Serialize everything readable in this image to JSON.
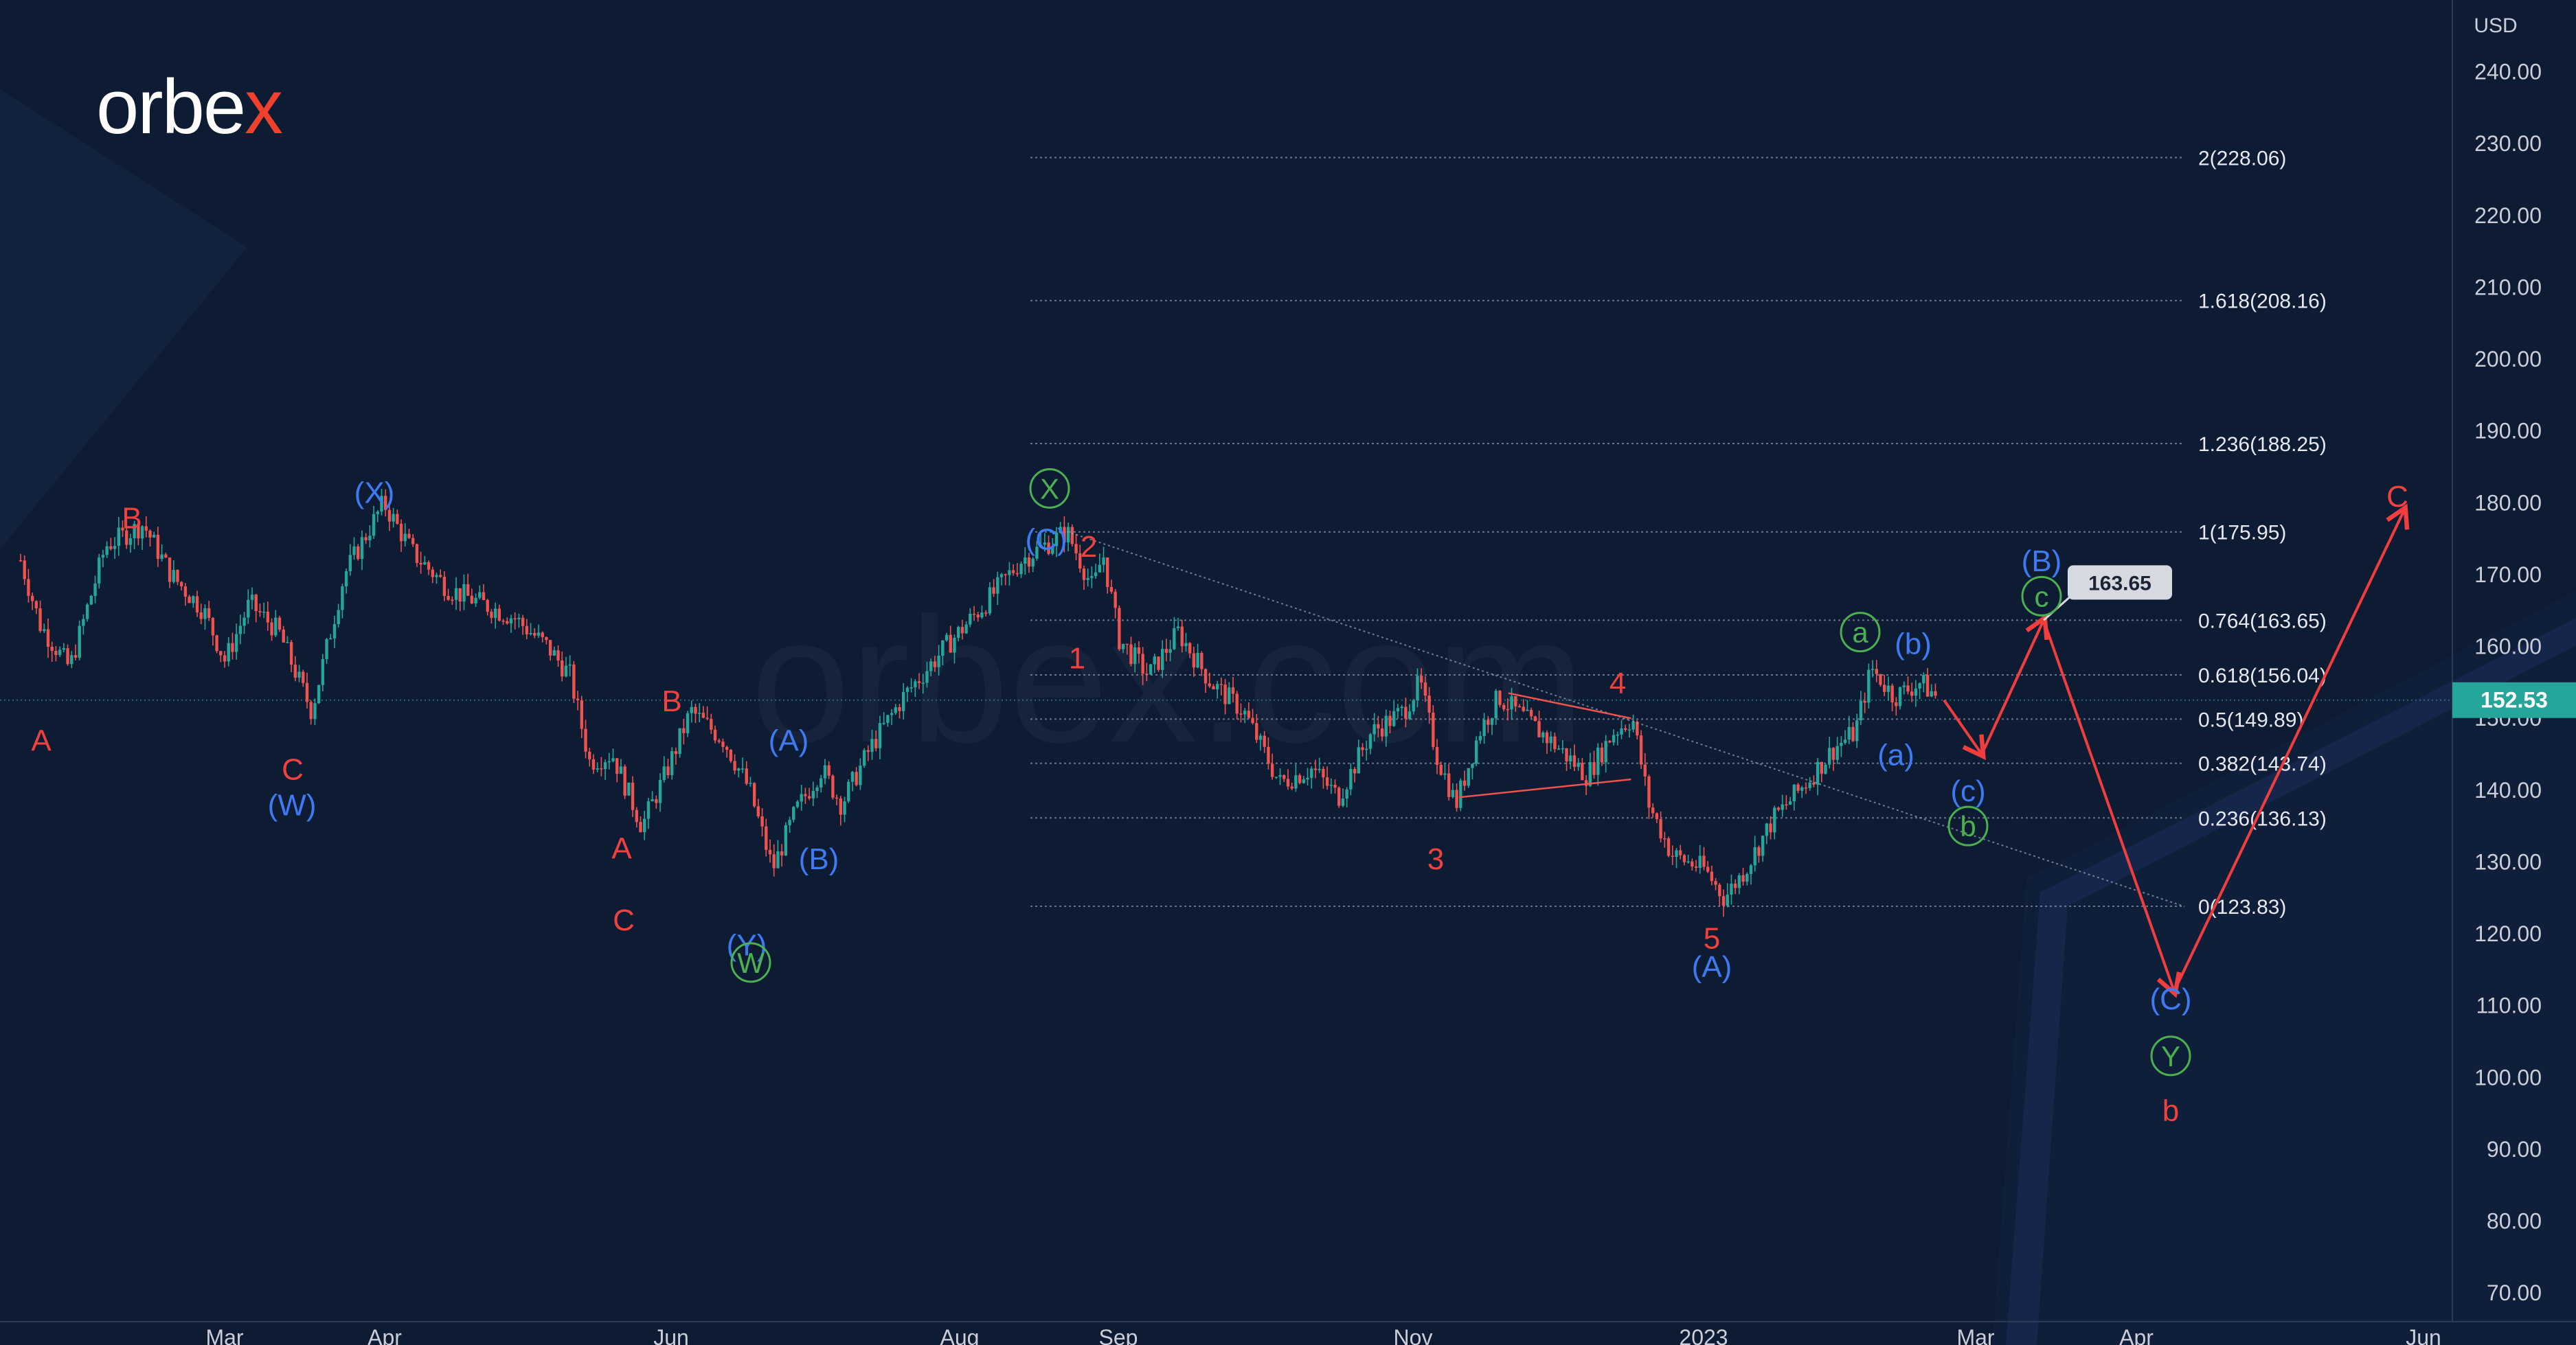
{
  "brand": {
    "prefix": "orbe",
    "accent": "x",
    "accent_color": "#f0412f",
    "watermark": "orbex.com"
  },
  "chart_data": {
    "type": "candlestick",
    "currency": "USD",
    "ylim": [
      66,
      250
    ],
    "y_ticks": [
      70,
      80,
      90,
      100,
      110,
      120,
      130,
      140,
      150,
      160,
      170,
      180,
      190,
      200,
      210,
      220,
      230,
      240
    ],
    "x_ticks": [
      "Mar",
      "Apr",
      "Jun",
      "Aug",
      "Sep",
      "Nov",
      "2023",
      "Mar",
      "Apr",
      "Jun"
    ],
    "last_price": 152.53,
    "last_price_label": "152.53",
    "fib_levels": [
      {
        "ratio": "2",
        "price": 228.06,
        "label": "2(228.06)"
      },
      {
        "ratio": "1.618",
        "price": 208.16,
        "label": "1.618(208.16)"
      },
      {
        "ratio": "1.236",
        "price": 188.25,
        "label": "1.236(188.25)"
      },
      {
        "ratio": "1",
        "price": 175.95,
        "label": "1(175.95)"
      },
      {
        "ratio": "0.764",
        "price": 163.65,
        "label": "0.764(163.65)"
      },
      {
        "ratio": "0.618",
        "price": 156.04,
        "label": "0.618(156.04)"
      },
      {
        "ratio": "0.5",
        "price": 149.89,
        "label": "0.5(149.89)"
      },
      {
        "ratio": "0.382",
        "price": 143.74,
        "label": "0.382(143.74)"
      },
      {
        "ratio": "0.236",
        "price": 136.13,
        "label": "0.236(136.13)"
      },
      {
        "ratio": "0",
        "price": 123.83,
        "label": "0(123.83)"
      }
    ],
    "target_callout": {
      "price": 163.65,
      "label": "163.65"
    },
    "price_path": [
      [
        0,
        172
      ],
      [
        12,
        163
      ],
      [
        30,
        157
      ],
      [
        52,
        174
      ],
      [
        75,
        177
      ],
      [
        92,
        170
      ],
      [
        112,
        165
      ],
      [
        125,
        158
      ],
      [
        140,
        166
      ],
      [
        158,
        162
      ],
      [
        178,
        151
      ],
      [
        198,
        170
      ],
      [
        222,
        180
      ],
      [
        240,
        173
      ],
      [
        262,
        168
      ],
      [
        282,
        166
      ],
      [
        302,
        164
      ],
      [
        322,
        160
      ],
      [
        336,
        156
      ],
      [
        348,
        144
      ],
      [
        362,
        145
      ],
      [
        380,
        135
      ],
      [
        394,
        142
      ],
      [
        410,
        151
      ],
      [
        430,
        147
      ],
      [
        446,
        140
      ],
      [
        460,
        129
      ],
      [
        474,
        137
      ],
      [
        490,
        143
      ],
      [
        502,
        138
      ],
      [
        520,
        146
      ],
      [
        540,
        153
      ],
      [
        566,
        160
      ],
      [
        590,
        166
      ],
      [
        612,
        172
      ],
      [
        640,
        176
      ],
      [
        656,
        168
      ],
      [
        662,
        173
      ],
      [
        672,
        161
      ],
      [
        690,
        156
      ],
      [
        708,
        162
      ],
      [
        728,
        155
      ],
      [
        748,
        151
      ],
      [
        770,
        141
      ],
      [
        790,
        143
      ],
      [
        806,
        139
      ],
      [
        826,
        148
      ],
      [
        846,
        151
      ],
      [
        856,
        155
      ],
      [
        866,
        145
      ],
      [
        878,
        138
      ],
      [
        892,
        148
      ],
      [
        904,
        153
      ],
      [
        920,
        150
      ],
      [
        940,
        146
      ],
      [
        958,
        142
      ],
      [
        974,
        148
      ],
      [
        986,
        150
      ],
      [
        996,
        138
      ],
      [
        1010,
        131
      ],
      [
        1030,
        129
      ],
      [
        1042,
        125
      ],
      [
        1055,
        129
      ],
      [
        1072,
        136
      ],
      [
        1092,
        141
      ],
      [
        1110,
        146
      ],
      [
        1122,
        148
      ],
      [
        1132,
        157
      ],
      [
        1146,
        153
      ],
      [
        1162,
        155
      ],
      [
        1172,
        153
      ]
    ],
    "projection": [
      {
        "price": 152.53
      },
      {
        "price": 145
      },
      {
        "price": 163.65
      },
      {
        "price": 112
      },
      {
        "price": 179
      }
    ],
    "annotations": [
      {
        "text": "A",
        "color": "red",
        "price": 147
      },
      {
        "text": "B",
        "color": "red",
        "price": 178
      },
      {
        "text": "C",
        "color": "red",
        "price": 143
      },
      {
        "text": "(W)",
        "color": "blue",
        "price": 138
      },
      {
        "text": "(X)",
        "color": "blue",
        "price": 181.5
      },
      {
        "text": "A",
        "color": "red",
        "price": 132
      },
      {
        "text": "B",
        "color": "red",
        "price": 152.5
      },
      {
        "text": "C",
        "color": "red",
        "price": 122
      },
      {
        "text": "(Y)",
        "color": "blue",
        "price": 118.5
      },
      {
        "text": "W",
        "color": "green",
        "circle": true,
        "price": 116
      },
      {
        "text": "(A)",
        "color": "blue",
        "price": 147
      },
      {
        "text": "(B)",
        "color": "blue",
        "price": 130.5
      },
      {
        "text": "X",
        "color": "green",
        "circle": true,
        "price": 182
      },
      {
        "text": "(C)",
        "color": "blue",
        "price": 175
      },
      {
        "text": "2",
        "color": "red",
        "price": 174
      },
      {
        "text": "1",
        "color": "red",
        "price": 158.5
      },
      {
        "text": "3",
        "color": "red",
        "price": 130.5
      },
      {
        "text": "4",
        "color": "red",
        "price": 155
      },
      {
        "text": "5",
        "color": "red",
        "price": 119.5
      },
      {
        "text": "(A)",
        "color": "blue",
        "price": 115.5
      },
      {
        "text": "a",
        "color": "green",
        "circle": true,
        "price": 162
      },
      {
        "text": "(b)",
        "color": "blue",
        "price": 160.5
      },
      {
        "text": "(a)",
        "color": "blue",
        "price": 145
      },
      {
        "text": "(c)",
        "color": "blue",
        "price": 140
      },
      {
        "text": "b",
        "color": "green",
        "circle": true,
        "price": 135
      },
      {
        "text": "(B)",
        "color": "blue",
        "price": 172
      },
      {
        "text": "c",
        "color": "green",
        "circle": true,
        "price": 167
      },
      {
        "text": "(C)",
        "color": "blue",
        "price": 111
      },
      {
        "text": "Y",
        "color": "green",
        "circle": true,
        "price": 103
      },
      {
        "text": "b",
        "color": "red",
        "price": 95.5
      },
      {
        "text": "C",
        "color": "red",
        "price": 181
      }
    ],
    "colors": {
      "background": "#0d1b33",
      "up_candle": "#26a69a",
      "down_candle": "#ef5350",
      "red_label": "#f0413f",
      "blue_label": "#3e7bf2",
      "green_label": "#4caf50",
      "projection": "#f03e3e",
      "price_tag": "#26a69a",
      "fib_line": "#8a93a6",
      "axis_text": "#c9ced8"
    }
  }
}
